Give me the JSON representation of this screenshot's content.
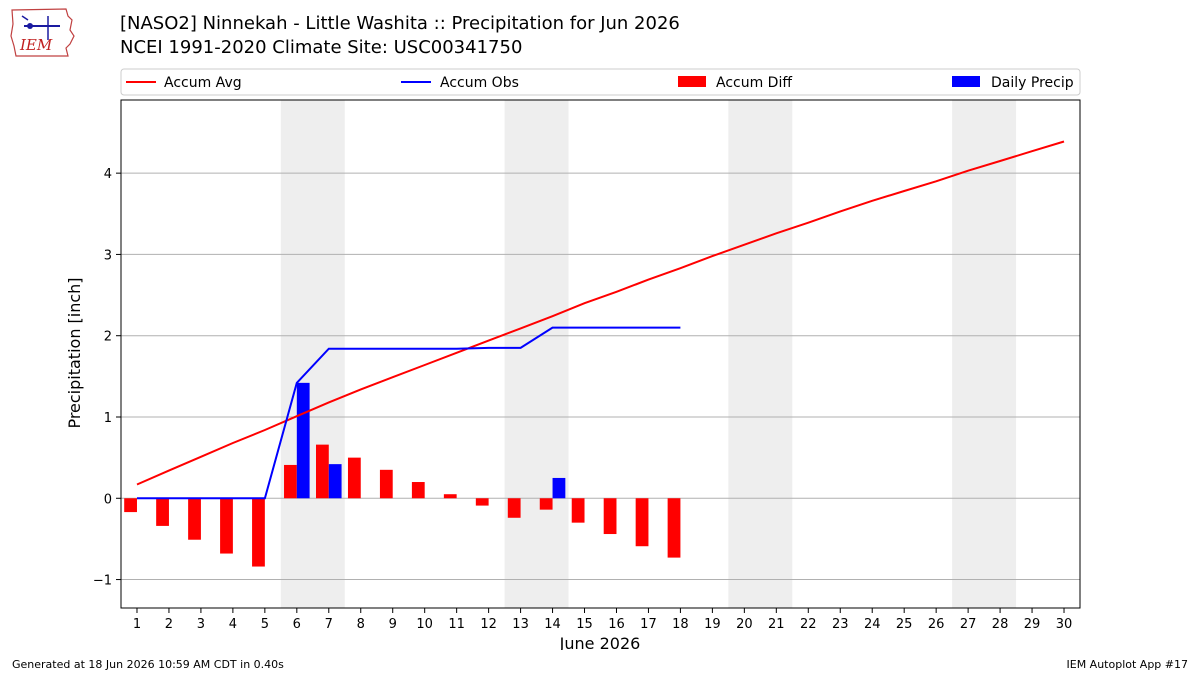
{
  "header": {
    "title": "[NASO2] Ninnekah - Little Washita :: Precipitation for Jun 2026",
    "subtitle": "NCEI 1991-2020 Climate Site: USC00341750",
    "logo_text": "IEM"
  },
  "footer": {
    "generated": "Generated at 18 Jun 2026 10:59 AM CDT in 0.40s",
    "app": "IEM Autoplot App #17"
  },
  "colors": {
    "accum_avg": "#ff0000",
    "accum_obs": "#0000ff",
    "accum_diff": "#ff0000",
    "daily_precip": "#0000ff",
    "weekend_band": "#eeeeee",
    "grid": "#b0b0b0"
  },
  "chart_data": {
    "type": "bar",
    "xlabel": "June 2026",
    "ylabel": "Precipitation [inch]",
    "xlim": [
      0.5,
      30.5
    ],
    "ylim": [
      -1.35,
      4.9
    ],
    "x_ticks": [
      1,
      2,
      3,
      4,
      5,
      6,
      7,
      8,
      9,
      10,
      11,
      12,
      13,
      14,
      15,
      16,
      17,
      18,
      19,
      20,
      21,
      22,
      23,
      24,
      25,
      26,
      27,
      28,
      29,
      30
    ],
    "y_ticks": [
      -1,
      0,
      1,
      2,
      3,
      4
    ],
    "y_tick_labels": [
      "−1",
      "0",
      "1",
      "2",
      "3",
      "4"
    ],
    "grid": "horizontal",
    "legend_position": "top",
    "weekend_bands": [
      [
        5.5,
        7.5
      ],
      [
        12.5,
        14.5
      ],
      [
        19.5,
        21.5
      ],
      [
        26.5,
        28.5
      ]
    ],
    "series": [
      {
        "name": "Accum Avg",
        "kind": "line",
        "x": [
          1,
          2,
          3,
          4,
          5,
          6,
          7,
          8,
          9,
          10,
          11,
          12,
          13,
          14,
          15,
          16,
          17,
          18,
          19,
          20,
          21,
          22,
          23,
          24,
          25,
          26,
          27,
          28,
          29,
          30
        ],
        "values": [
          0.17,
          0.34,
          0.51,
          0.68,
          0.84,
          1.01,
          1.18,
          1.34,
          1.49,
          1.64,
          1.79,
          1.94,
          2.09,
          2.24,
          2.4,
          2.54,
          2.69,
          2.83,
          2.98,
          3.12,
          3.26,
          3.39,
          3.53,
          3.66,
          3.78,
          3.9,
          4.03,
          4.15,
          4.27,
          4.39
        ]
      },
      {
        "name": "Accum Obs",
        "kind": "line",
        "x": [
          1,
          2,
          3,
          4,
          5,
          6,
          7,
          8,
          9,
          10,
          11,
          12,
          13,
          14,
          15,
          16,
          17,
          18
        ],
        "values": [
          0,
          0,
          0,
          0,
          0,
          1.42,
          1.84,
          1.84,
          1.84,
          1.84,
          1.84,
          1.85,
          1.85,
          2.1,
          2.1,
          2.1,
          2.1,
          2.1
        ]
      },
      {
        "name": "Accum Diff",
        "kind": "bar",
        "x": [
          1,
          2,
          3,
          4,
          5,
          6,
          7,
          8,
          9,
          10,
          11,
          12,
          13,
          14,
          15,
          16,
          17,
          18
        ],
        "values": [
          -0.17,
          -0.34,
          -0.51,
          -0.68,
          -0.84,
          0.41,
          0.66,
          0.5,
          0.35,
          0.2,
          0.05,
          -0.09,
          -0.24,
          -0.14,
          -0.3,
          -0.44,
          -0.59,
          -0.73
        ]
      },
      {
        "name": "Daily Precip",
        "kind": "bar",
        "x": [
          6,
          7,
          14
        ],
        "values": [
          1.42,
          0.42,
          0.25
        ]
      }
    ]
  }
}
